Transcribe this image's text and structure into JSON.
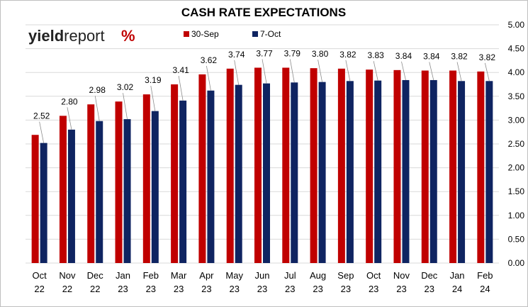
{
  "chart_data": {
    "type": "bar",
    "title": "CASH RATE EXPECTATIONS",
    "categories": [
      [
        "Oct",
        "22"
      ],
      [
        "Nov",
        "22"
      ],
      [
        "Dec",
        "22"
      ],
      [
        "Jan",
        "23"
      ],
      [
        "Feb",
        "23"
      ],
      [
        "Mar",
        "23"
      ],
      [
        "Apr",
        "23"
      ],
      [
        "May",
        "23"
      ],
      [
        "Jun",
        "23"
      ],
      [
        "Jul",
        "23"
      ],
      [
        "Aug",
        "23"
      ],
      [
        "Sep",
        "23"
      ],
      [
        "Oct",
        "23"
      ],
      [
        "Nov",
        "23"
      ],
      [
        "Dec",
        "23"
      ],
      [
        "Jan",
        "24"
      ],
      [
        "Feb",
        "24"
      ]
    ],
    "series": [
      {
        "name": "30-Sep",
        "color": "#c00000",
        "values": [
          2.69,
          3.09,
          3.33,
          3.39,
          3.54,
          3.75,
          3.96,
          4.08,
          4.1,
          4.1,
          4.09,
          4.08,
          4.06,
          4.05,
          4.04,
          4.04,
          4.02
        ]
      },
      {
        "name": "7-Oct",
        "color": "#0f2461",
        "values": [
          2.52,
          2.8,
          2.98,
          3.02,
          3.19,
          3.41,
          3.62,
          3.74,
          3.77,
          3.79,
          3.8,
          3.82,
          3.83,
          3.84,
          3.84,
          3.82,
          3.82
        ]
      }
    ],
    "data_labels": [
      "2.52",
      "2.80",
      "2.98",
      "3.02",
      "3.19",
      "3.41",
      "3.62",
      "3.74",
      "3.77",
      "3.79",
      "3.80",
      "3.82",
      "3.83",
      "3.84",
      "3.84",
      "3.82",
      "3.82"
    ],
    "y_ticks": [
      "0.00",
      "0.50",
      "1.00",
      "1.50",
      "2.00",
      "2.50",
      "3.00",
      "3.50",
      "4.00",
      "4.50",
      "5.00"
    ],
    "ylim": [
      0,
      5
    ],
    "y_axis_position": "right",
    "grid": true,
    "legend_placement": "top-left",
    "logo": {
      "text_bold": "yield",
      "text_regular": "report",
      "symbol": "%"
    }
  }
}
